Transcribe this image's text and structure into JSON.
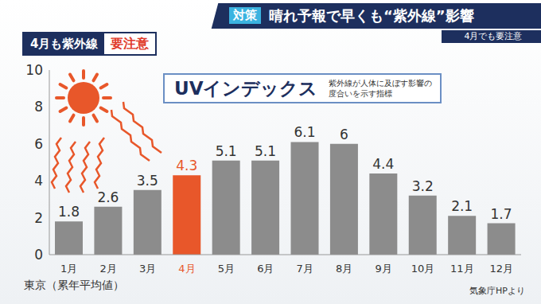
{
  "header": {
    "tag": "対策",
    "headline": "晴れ予報で早くも“紫外線”影響",
    "subheadline": "4月でも要注意"
  },
  "badge": {
    "text": "4月も紫外線",
    "emphasis": "要注意"
  },
  "chart_data": {
    "type": "bar",
    "title": "UVインデックス",
    "subtitle": "紫外線が人体に及ぼす影響の度合いを示す指標",
    "x_label": "東京（累年平均値）",
    "source": "気象庁HPより",
    "categories": [
      "1月",
      "2月",
      "3月",
      "4月",
      "5月",
      "6月",
      "7月",
      "8月",
      "9月",
      "10月",
      "11月",
      "12月"
    ],
    "values": [
      1.8,
      2.6,
      3.5,
      4.3,
      5.1,
      5.1,
      6.1,
      6.0,
      4.4,
      3.2,
      2.1,
      1.7
    ],
    "color": "#8c8c8c",
    "colors": [
      "#8c8c8c",
      "#8c8c8c",
      "#8c8c8c",
      "#e8572a",
      "#8c8c8c",
      "#8c8c8c",
      "#8c8c8c",
      "#8c8c8c",
      "#8c8c8c",
      "#8c8c8c",
      "#8c8c8c",
      "#8c8c8c"
    ],
    "ylim": [
      0,
      10
    ],
    "yticks": [
      0,
      2,
      4,
      6,
      8,
      10
    ],
    "grid": false,
    "data_labels": true
  }
}
